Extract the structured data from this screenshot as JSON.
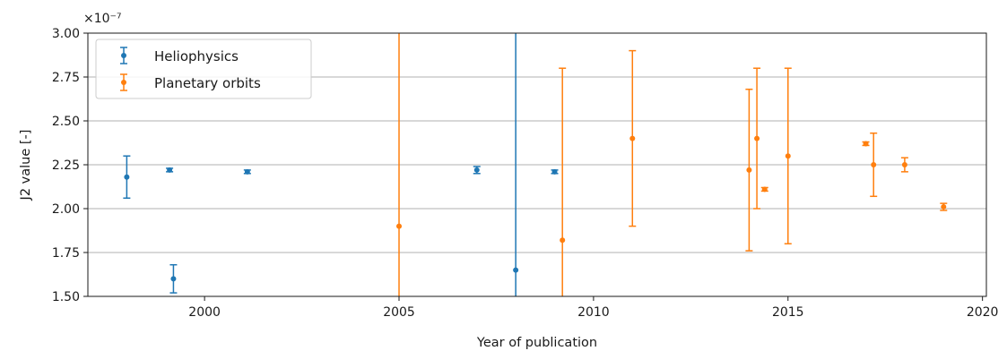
{
  "chart_data": {
    "type": "scatter",
    "title": "",
    "xlabel": "Year of publication",
    "ylabel": "J2 value [-]",
    "y_offset_label": "×10⁻⁷",
    "xlim": [
      1997,
      2020.1
    ],
    "ylim": [
      1.5,
      3.0
    ],
    "x_ticks": [
      2000,
      2005,
      2010,
      2015,
      2020
    ],
    "x_tick_labels": [
      "2000",
      "2005",
      "2010",
      "2015",
      "2020"
    ],
    "y_ticks": [
      1.5,
      1.75,
      2.0,
      2.25,
      2.5,
      2.75,
      3.0
    ],
    "y_tick_labels": [
      "1.50",
      "1.75",
      "2.00",
      "2.25",
      "2.50",
      "2.75",
      "3.00"
    ],
    "grid": "y",
    "legend_position": "upper-left",
    "series": [
      {
        "name": "Heliophysics",
        "color": "#1f77b4",
        "points": [
          {
            "x": 1998.0,
            "y": 2.18,
            "err_low": 0.12,
            "err_high": 0.12
          },
          {
            "x": 1999.1,
            "y": 2.22,
            "err_low": 0.01,
            "err_high": 0.01
          },
          {
            "x": 1999.2,
            "y": 1.6,
            "err_low": 0.08,
            "err_high": 0.08
          },
          {
            "x": 2001.1,
            "y": 2.21,
            "err_low": 0.01,
            "err_high": 0.01
          },
          {
            "x": 2007.0,
            "y": 2.22,
            "err_low": 0.02,
            "err_high": 0.02
          },
          {
            "x": 2008.0,
            "y": 1.65,
            "err_low": 1.0,
            "err_high": 1.5
          },
          {
            "x": 2009.0,
            "y": 2.21,
            "err_low": 0.01,
            "err_high": 0.01
          }
        ]
      },
      {
        "name": "Planetary orbits",
        "color": "#ff7f0e",
        "points": [
          {
            "x": 2005.0,
            "y": 1.9,
            "err_low": 1.0,
            "err_high": 1.5
          },
          {
            "x": 2009.2,
            "y": 1.82,
            "err_low": 1.0,
            "err_high": 0.98
          },
          {
            "x": 2011.0,
            "y": 2.4,
            "err_low": 0.5,
            "err_high": 0.5
          },
          {
            "x": 2014.0,
            "y": 2.22,
            "err_low": 0.46,
            "err_high": 0.46
          },
          {
            "x": 2014.2,
            "y": 2.4,
            "err_low": 0.4,
            "err_high": 0.4
          },
          {
            "x": 2014.4,
            "y": 2.11,
            "err_low": 0.01,
            "err_high": 0.01
          },
          {
            "x": 2015.0,
            "y": 2.3,
            "err_low": 0.5,
            "err_high": 0.5
          },
          {
            "x": 2017.0,
            "y": 2.37,
            "err_low": 0.01,
            "err_high": 0.01
          },
          {
            "x": 2017.2,
            "y": 2.25,
            "err_low": 0.18,
            "err_high": 0.18
          },
          {
            "x": 2018.0,
            "y": 2.25,
            "err_low": 0.04,
            "err_high": 0.04
          },
          {
            "x": 2019.0,
            "y": 2.01,
            "err_low": 0.02,
            "err_high": 0.02
          }
        ]
      }
    ]
  }
}
